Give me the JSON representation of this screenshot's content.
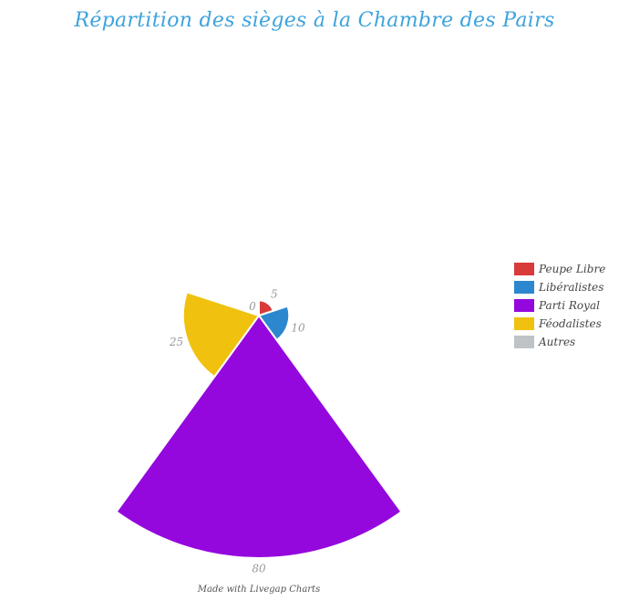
{
  "chart_data": {
    "type": "polar-area",
    "title": "Répartition des sièges à la Chambre des Pairs",
    "categories": [
      "Peupe Libre",
      "Libéralistes",
      "Parti Royal",
      "Féodalistes",
      "Autres"
    ],
    "values": [
      5,
      10,
      80,
      25,
      0
    ],
    "colors": [
      "#d93a3a",
      "#2d87cf",
      "#9408dd",
      "#f0c20f",
      "#bdc3c7"
    ],
    "legend_position": "right",
    "grid": false
  },
  "footer": "Made with Livegap Charts"
}
